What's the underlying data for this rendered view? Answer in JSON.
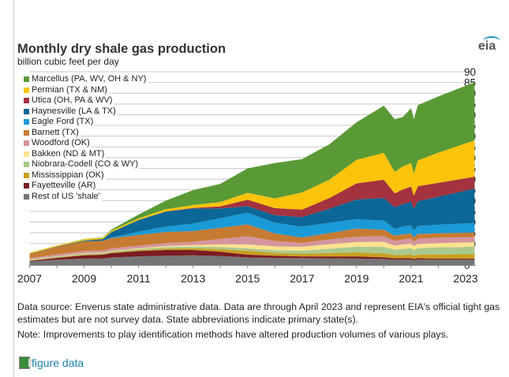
{
  "chart_data": {
    "type": "area",
    "title": "Monthly dry shale gas production",
    "subtitle": "billion cubic feet per day",
    "ylabel": "billion cubic feet per day",
    "xlabel": "",
    "ylim": [
      0,
      90
    ],
    "xlim": [
      2007,
      2023.33
    ],
    "yticks": [
      "0",
      "5",
      "10",
      "15",
      "20",
      "25",
      "30",
      "35",
      "40",
      "45",
      "50",
      "55",
      "60",
      "65",
      "70",
      "75",
      "80",
      "85",
      "90"
    ],
    "xticks": [
      "2007",
      "2009",
      "2011",
      "2013",
      "2015",
      "2017",
      "2019",
      "2021",
      "2023"
    ],
    "grid": true,
    "legend_position": "top-left",
    "x": [
      2007,
      2008,
      2009,
      2009.7,
      2010,
      2011,
      2012,
      2013,
      2014,
      2015,
      2016,
      2017,
      2018,
      2019,
      2020,
      2020.4,
      2020.7,
      2021,
      2021.1,
      2021.25,
      2022,
      2023.33
    ],
    "series": [
      {
        "name": "Rest of US 'shale'",
        "color": "#767676",
        "values": [
          1.6,
          2.5,
          3.0,
          3.0,
          3.5,
          4.0,
          4.3,
          4.5,
          4.2,
          3.5,
          3.3,
          3.2,
          3.1,
          3.0,
          2.8,
          2.5,
          2.5,
          2.5,
          2.3,
          2.5,
          2.5,
          2.5
        ]
      },
      {
        "name": "Fayetteville (AR)",
        "color": "#7b1c22",
        "values": [
          0.3,
          0.8,
          1.5,
          1.8,
          2.0,
          2.5,
          2.7,
          2.5,
          2.0,
          1.3,
          1.0,
          0.8,
          0.9,
          1.0,
          0.8,
          0.6,
          0.6,
          0.6,
          0.5,
          0.6,
          0.5,
          0.5
        ]
      },
      {
        "name": "Mississippian (OK)",
        "color": "#c9a021",
        "values": [
          0.2,
          0.2,
          0.3,
          0.3,
          0.3,
          0.4,
          0.6,
          0.8,
          1.2,
          1.8,
          1.4,
          1.2,
          1.6,
          1.9,
          1.8,
          1.6,
          1.6,
          1.7,
          1.5,
          1.7,
          1.9,
          2.0
        ]
      },
      {
        "name": "Niobrara-Codell (CO & WY)",
        "color": "#a9c98f",
        "values": [
          0.4,
          0.5,
          0.5,
          0.5,
          0.6,
          0.6,
          0.7,
          0.8,
          1.0,
          1.1,
          1.2,
          1.4,
          2.0,
          2.6,
          3.0,
          2.5,
          2.8,
          3.0,
          2.7,
          3.0,
          3.3,
          3.5
        ]
      },
      {
        "name": "Bakken (ND & MT)",
        "color": "#fbe38e",
        "values": [
          0.1,
          0.1,
          0.2,
          0.2,
          0.2,
          0.3,
          0.5,
          0.7,
          1.2,
          1.9,
          1.8,
          1.9,
          2.1,
          2.2,
          2.4,
          1.8,
          2.0,
          2.1,
          1.8,
          2.0,
          2.0,
          2.1
        ]
      },
      {
        "name": "Woodford (OK)",
        "color": "#d4959e",
        "values": [
          0.6,
          0.8,
          1.0,
          1.0,
          1.1,
          1.2,
          1.4,
          1.5,
          2.5,
          3.8,
          2.5,
          1.8,
          2.2,
          2.5,
          2.6,
          2.2,
          2.4,
          2.5,
          2.1,
          2.4,
          2.5,
          2.5
        ]
      },
      {
        "name": "Barnett (TX)",
        "color": "#c67b32",
        "values": [
          1.8,
          3.5,
          4.5,
          4.5,
          4.8,
          5.0,
          5.2,
          5.0,
          5.2,
          5.5,
          3.5,
          2.5,
          3.0,
          3.8,
          3.0,
          2.5,
          2.4,
          2.3,
          2.0,
          2.2,
          2.1,
          2.0
        ]
      },
      {
        "name": "Eagle Ford (TX)",
        "color": "#1a9ad6",
        "values": [
          0,
          0,
          0,
          0,
          0.3,
          1.5,
          2.5,
          3.5,
          4.5,
          5.5,
          5.0,
          5.0,
          4.8,
          4.3,
          4.3,
          3.2,
          3.6,
          3.8,
          3.2,
          3.8,
          4.0,
          4.5
        ]
      },
      {
        "name": "Haynesville (LA & TX)",
        "color": "#0b6797",
        "values": [
          0.2,
          0.2,
          0.4,
          0.8,
          2.5,
          5.5,
          7.0,
          7.0,
          4.5,
          3.0,
          3.5,
          4.5,
          6.5,
          9.2,
          10.5,
          10.0,
          10.5,
          11.0,
          10.0,
          11.5,
          13.0,
          16.0
        ]
      },
      {
        "name": "Utica (OH, PA & WV)",
        "color": "#a4323f",
        "values": [
          0,
          0,
          0,
          0,
          0,
          0,
          0.1,
          0.3,
          1.0,
          3.0,
          3.3,
          3.5,
          5.0,
          7.5,
          8.5,
          6.5,
          6.8,
          7.0,
          6.2,
          7.0,
          6.5,
          5.5
        ]
      },
      {
        "name": "Permian (TX & NM)",
        "color": "#fcc30b",
        "values": [
          0.5,
          0.5,
          0.6,
          0.6,
          0.7,
          0.7,
          1.0,
          1.3,
          2.0,
          3.2,
          4.5,
          8.0,
          8.5,
          11,
          12.5,
          10.0,
          10.8,
          11,
          10.5,
          12,
          14,
          17
        ]
      },
      {
        "name": "Marcellus (PA, WV, OH & NY)",
        "color": "#5a9a36",
        "values": [
          0,
          0,
          0.1,
          0.2,
          0.5,
          1.8,
          4,
          7,
          8.5,
          11.4,
          16.5,
          15.5,
          16.5,
          17.5,
          22,
          24.5,
          23,
          25.5,
          25.2,
          25.8,
          26.2,
          27
        ]
      }
    ]
  },
  "legend_order": [
    "Marcellus (PA, WV, OH & NY)",
    "Permian (TX & NM)",
    "Utica (OH, PA & WV)",
    "Haynesville (LA & TX)",
    "Eagle Ford (TX)",
    "Barnett (TX)",
    "Woodford (OK)",
    "Bakken (ND & MT)",
    "Niobrara-Codell (CO & WY)",
    "Mississippian (OK)",
    "Fayetteville (AR)",
    "Rest of US 'shale'"
  ],
  "logo": "eia",
  "footer": {
    "source": "Data source: Enverus state administrative data. Data are through April 2023 and represent EIA's official tight gas estimates but are not survey data. State abbreviations indicate primary state(s).",
    "note": "Note: Improvements to play identification methods have altered production volumes of various plays.",
    "link": "figure data"
  }
}
